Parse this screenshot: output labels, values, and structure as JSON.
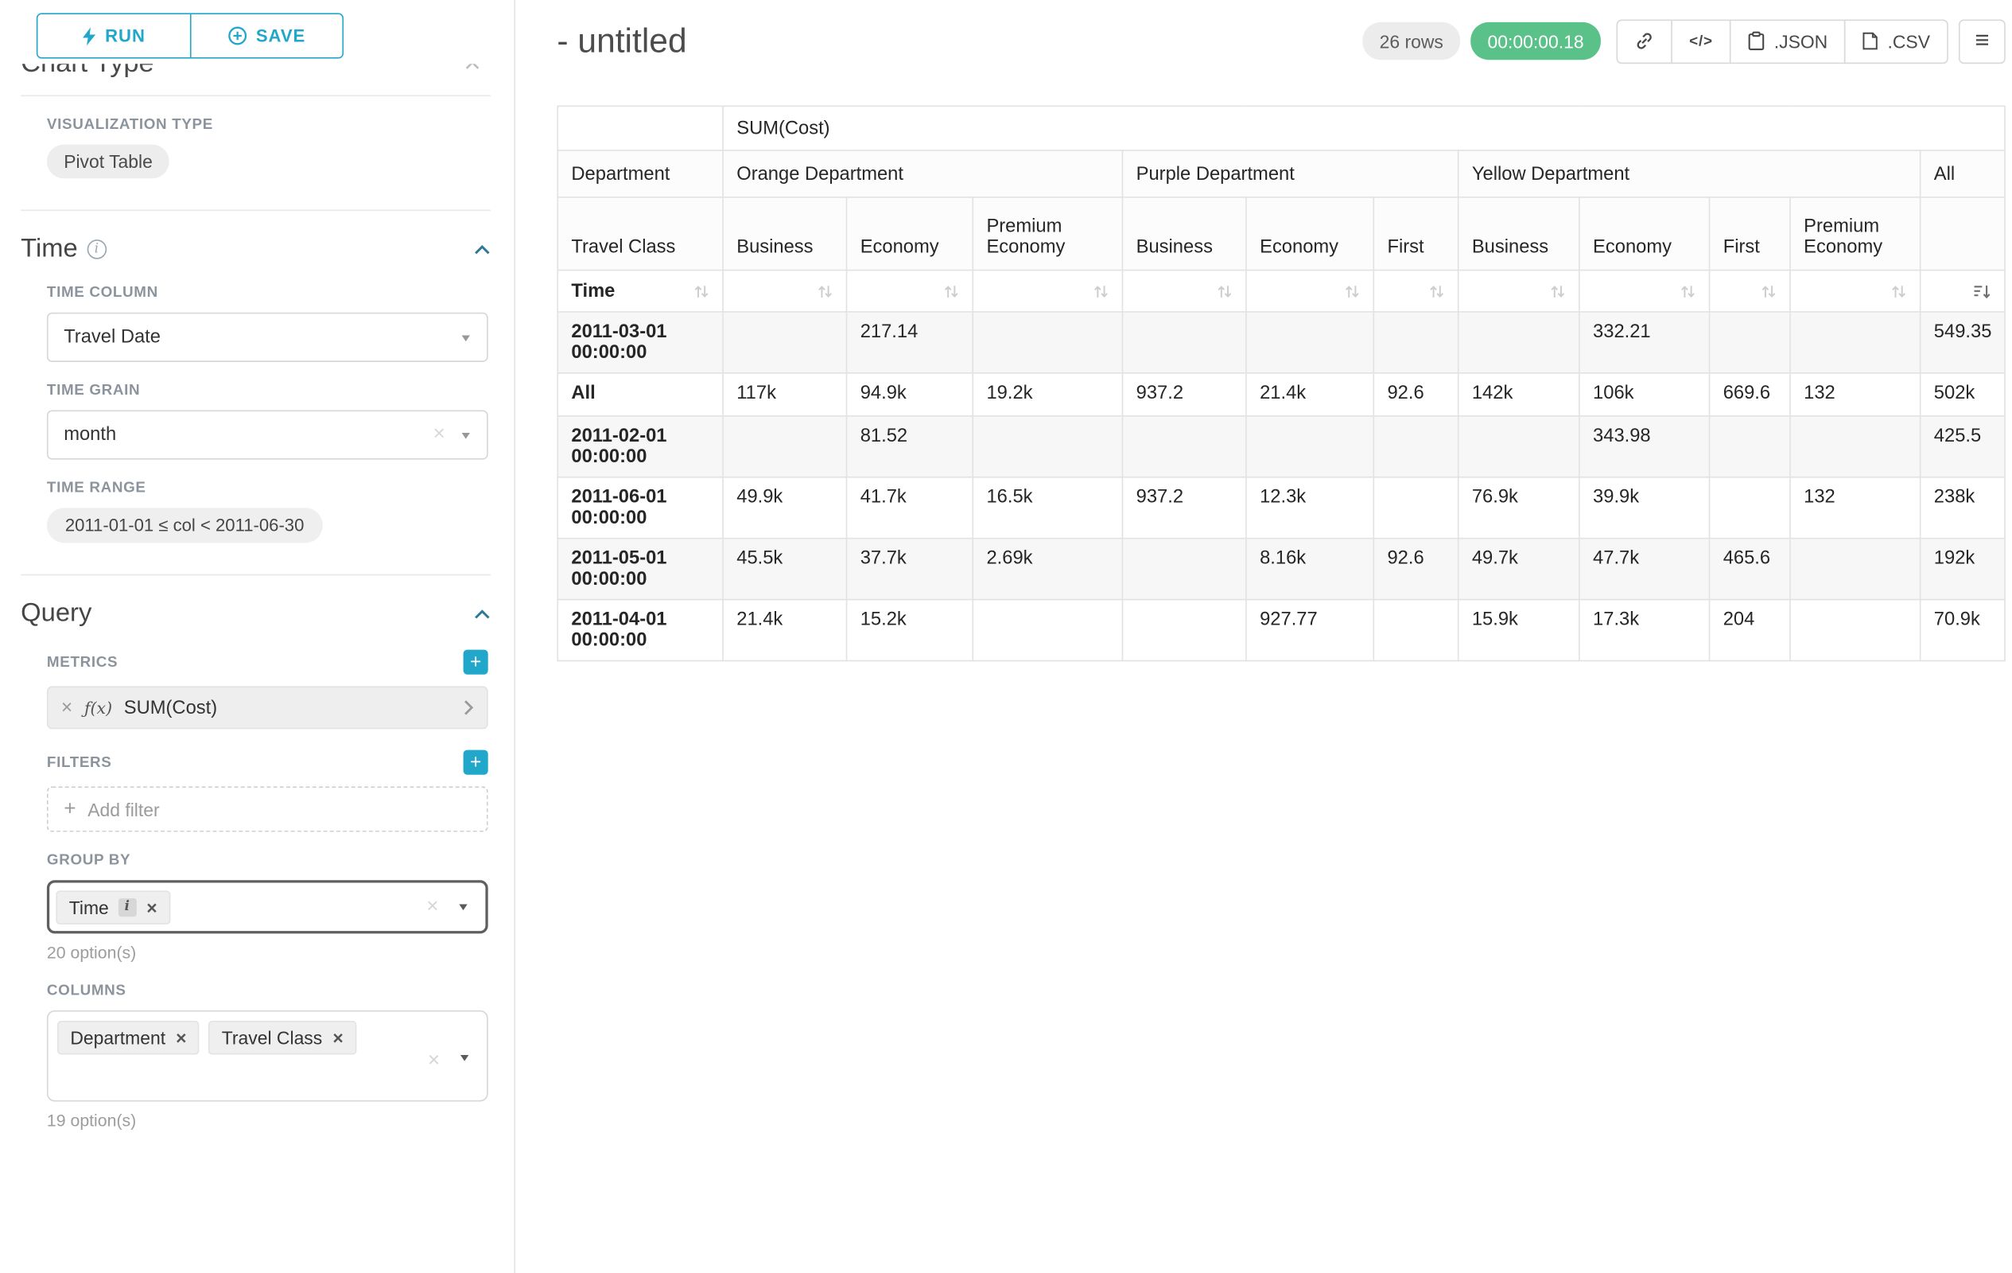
{
  "colors": {
    "primary": "#20a7c9",
    "success": "#5ac189"
  },
  "icons": {
    "menu": "≡",
    "fx": "ƒ(x)",
    "code": "</>",
    "remove": "×",
    "clear": "×",
    "plus": "+",
    "caret": "▼",
    "info": "i"
  },
  "sidebar": {
    "run_label": "RUN",
    "save_label": "SAVE",
    "chart_type_heading": "Chart Type",
    "visualization": {
      "label": "VISUALIZATION TYPE",
      "value": "Pivot Table"
    },
    "time": {
      "heading": "Time",
      "column_label": "TIME COLUMN",
      "column_value": "Travel Date",
      "grain_label": "TIME GRAIN",
      "grain_value": "month",
      "range_label": "TIME RANGE",
      "range_value": "2011-01-01 ≤ col < 2011-06-30"
    },
    "query": {
      "heading": "Query",
      "metrics_label": "METRICS",
      "metric_value": "SUM(Cost)",
      "filters_label": "FILTERS",
      "add_filter_label": "Add filter",
      "group_by_label": "GROUP BY",
      "group_by_chip": "Time",
      "group_by_options": "20 option(s)",
      "columns_label": "COLUMNS",
      "column_chips": [
        "Department",
        "Travel Class"
      ],
      "columns_options": "19 option(s)"
    }
  },
  "header": {
    "title": "- untitled",
    "rows_badge": "26 rows",
    "timer": "00:00:00.18",
    "json_button": ".JSON",
    "csv_button": ".CSV"
  },
  "chart_data": {
    "type": "table",
    "metric": "SUM(Cost)",
    "department_label": "Department",
    "travel_class_label": "Travel Class",
    "time_label": "Time",
    "all_label": "All",
    "departments": [
      {
        "name": "Orange Department",
        "classes": [
          "Business",
          "Economy",
          "Premium Economy"
        ]
      },
      {
        "name": "Purple Department",
        "classes": [
          "Business",
          "Economy",
          "First"
        ]
      },
      {
        "name": "Yellow Department",
        "classes": [
          "Business",
          "Economy",
          "First",
          "Premium Economy"
        ]
      }
    ],
    "rows": [
      {
        "label": "2011-03-01 00:00:00",
        "values": [
          "",
          "217.14",
          "",
          "",
          "",
          "",
          "",
          "332.21",
          "",
          "",
          "549.35"
        ]
      },
      {
        "label": "All",
        "values": [
          "117k",
          "94.9k",
          "19.2k",
          "937.2",
          "21.4k",
          "92.6",
          "142k",
          "106k",
          "669.6",
          "132",
          "502k"
        ]
      },
      {
        "label": "2011-02-01 00:00:00",
        "values": [
          "",
          "81.52",
          "",
          "",
          "",
          "",
          "",
          "343.98",
          "",
          "",
          "425.5"
        ]
      },
      {
        "label": "2011-06-01 00:00:00",
        "values": [
          "49.9k",
          "41.7k",
          "16.5k",
          "937.2",
          "12.3k",
          "",
          "76.9k",
          "39.9k",
          "",
          "132",
          "238k"
        ]
      },
      {
        "label": "2011-05-01 00:00:00",
        "values": [
          "45.5k",
          "37.7k",
          "2.69k",
          "",
          "8.16k",
          "92.6",
          "49.7k",
          "47.7k",
          "465.6",
          "",
          "192k"
        ]
      },
      {
        "label": "2011-04-01 00:00:00",
        "values": [
          "21.4k",
          "15.2k",
          "",
          "",
          "927.77",
          "",
          "15.9k",
          "17.3k",
          "204",
          "",
          "70.9k"
        ]
      }
    ]
  }
}
